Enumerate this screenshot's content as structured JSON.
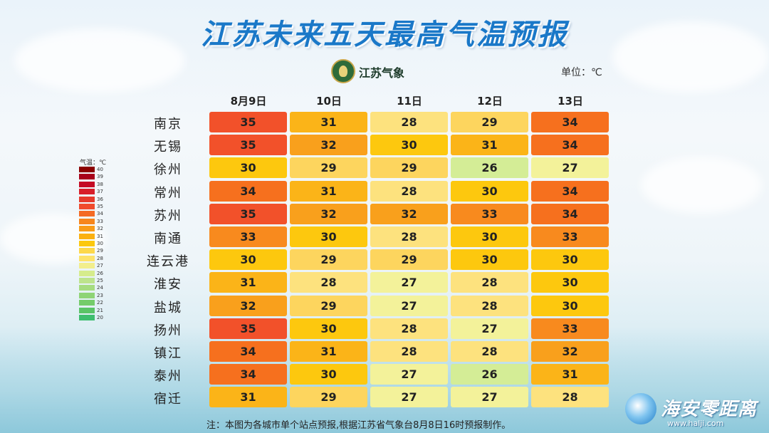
{
  "title": "江苏未来五天最高气温预报",
  "brand": "江苏气象",
  "unit": "单位：℃",
  "note": "注：本图为各城市单个站点预报,根据江苏省气象台8月8日16时预报制作。",
  "watermark": {
    "name": "海安零距离",
    "url": "www.halji.com"
  },
  "legend": {
    "title": "气温：℃",
    "levels": [
      40,
      39,
      38,
      37,
      36,
      35,
      34,
      33,
      32,
      31,
      30,
      29,
      28,
      27,
      26,
      25,
      24,
      23,
      22,
      21,
      20
    ],
    "colors": [
      "#8b0000",
      "#a8001a",
      "#c40a24",
      "#d81e2a",
      "#e63a2c",
      "#f04a2c",
      "#f46a24",
      "#f7861c",
      "#f99c18",
      "#fbb010",
      "#fcc80e",
      "#fdd84a",
      "#fde36a",
      "#f2ee8c",
      "#d6ec8c",
      "#bde48c",
      "#a6dc80",
      "#8ed476",
      "#74cc6a",
      "#5ac466",
      "#3ebe6e"
    ]
  },
  "chart_data": {
    "type": "table",
    "columns": [
      "8月9日",
      "10日",
      "11日",
      "12日",
      "13日"
    ],
    "rows": [
      "南京",
      "无锡",
      "徐州",
      "常州",
      "苏州",
      "南通",
      "连云港",
      "淮安",
      "盐城",
      "扬州",
      "镇江",
      "泰州",
      "宿迁"
    ],
    "values": [
      [
        35,
        31,
        28,
        29,
        34
      ],
      [
        35,
        32,
        30,
        31,
        34
      ],
      [
        30,
        29,
        29,
        26,
        27
      ],
      [
        34,
        31,
        28,
        30,
        34
      ],
      [
        35,
        32,
        32,
        33,
        34
      ],
      [
        33,
        30,
        28,
        30,
        33
      ],
      [
        30,
        29,
        29,
        30,
        30
      ],
      [
        31,
        28,
        27,
        28,
        30
      ],
      [
        32,
        29,
        27,
        28,
        30
      ],
      [
        35,
        30,
        28,
        27,
        33
      ],
      [
        34,
        31,
        28,
        28,
        32
      ],
      [
        34,
        30,
        27,
        26,
        31
      ],
      [
        31,
        29,
        27,
        27,
        28
      ]
    ],
    "color_scale": {
      "26": "#d4ed96",
      "27": "#f3f29a",
      "28": "#fde27e",
      "29": "#fdd55e",
      "30": "#fdc80e",
      "31": "#fbb418",
      "32": "#f9a01c",
      "33": "#f88a1e",
      "34": "#f6701e",
      "35": "#f2512a"
    }
  }
}
